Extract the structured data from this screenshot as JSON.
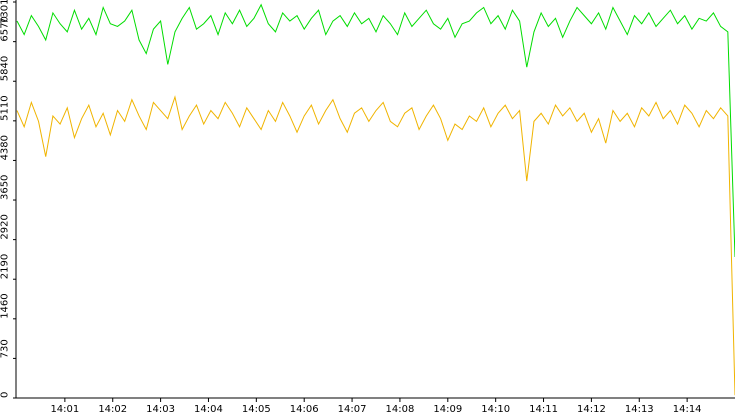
{
  "chart_data": {
    "type": "line",
    "x": [
      840,
      840.15,
      840.3,
      840.45,
      840.6,
      840.75,
      840.9,
      841.05,
      841.2,
      841.35,
      841.5,
      841.65,
      841.8,
      841.95,
      842.1,
      842.25,
      842.4,
      842.55,
      842.7,
      842.85,
      843,
      843.15,
      843.3,
      843.45,
      843.6,
      843.75,
      843.9,
      844.05,
      844.2,
      844.35,
      844.5,
      844.65,
      844.8,
      844.95,
      845.1,
      845.25,
      845.4,
      845.55,
      845.7,
      845.85,
      846,
      846.15,
      846.3,
      846.45,
      846.6,
      846.75,
      846.9,
      847.05,
      847.2,
      847.35,
      847.5,
      847.65,
      847.8,
      847.95,
      848.1,
      848.25,
      848.4,
      848.55,
      848.7,
      848.85,
      849,
      849.15,
      849.3,
      849.45,
      849.6,
      849.75,
      849.9,
      850.05,
      850.2,
      850.35,
      850.5,
      850.65,
      850.8,
      850.95,
      851.1,
      851.25,
      851.4,
      851.55,
      851.7,
      851.85,
      852,
      852.15,
      852.3,
      852.45,
      852.6,
      852.75,
      852.9,
      853.05,
      853.2,
      853.35,
      853.5,
      853.65,
      853.8,
      853.95,
      854.1,
      854.25,
      854.4,
      854.55,
      854.7,
      854.85,
      855
    ],
    "series": [
      {
        "color": "#00dd00",
        "values": [
          6950,
          6700,
          7050,
          6850,
          6600,
          7100,
          6900,
          6750,
          7150,
          6800,
          7000,
          6700,
          7200,
          6900,
          6850,
          6950,
          7150,
          6600,
          6350,
          6800,
          6950,
          6150,
          6750,
          7000,
          7200,
          6800,
          6900,
          7050,
          6700,
          7100,
          6900,
          7150,
          6850,
          7000,
          7250,
          6900,
          6750,
          7100,
          6950,
          7050,
          6800,
          7000,
          7150,
          6700,
          6950,
          7050,
          6850,
          7100,
          6900,
          7000,
          6750,
          7050,
          6900,
          6700,
          7100,
          6850,
          7000,
          7150,
          6900,
          6800,
          7000,
          6650,
          6900,
          6950,
          7100,
          7200,
          6900,
          7050,
          6800,
          7150,
          6950,
          6100,
          6750,
          7100,
          6850,
          7000,
          6650,
          6950,
          7200,
          7050,
          6900,
          7100,
          6800,
          7200,
          6950,
          6700,
          7050,
          6900,
          7100,
          6850,
          7000,
          7150,
          6900,
          7050,
          6800,
          7000,
          6950,
          7100,
          6850,
          6750,
          2600
        ]
      },
      {
        "color": "#f0b400",
        "values": [
          5300,
          5000,
          5450,
          5100,
          4450,
          5200,
          5050,
          5350,
          4800,
          5150,
          5400,
          5000,
          5250,
          4850,
          5300,
          5100,
          5500,
          5200,
          4950,
          5450,
          5300,
          5150,
          5550,
          4950,
          5200,
          5400,
          5050,
          5300,
          5150,
          5450,
          5250,
          5000,
          5350,
          5150,
          4950,
          5300,
          5100,
          5450,
          5200,
          4900,
          5200,
          5400,
          5050,
          5300,
          5500,
          5150,
          4900,
          5250,
          5350,
          5100,
          5300,
          5450,
          5100,
          5000,
          5250,
          5350,
          4950,
          5200,
          5400,
          5150,
          4750,
          5050,
          4950,
          5200,
          5100,
          5350,
          5000,
          5250,
          5400,
          5150,
          5300,
          4000,
          5100,
          5250,
          5050,
          5400,
          5200,
          5350,
          5100,
          5250,
          4900,
          5150,
          4700,
          5300,
          5100,
          5250,
          5000,
          5350,
          5200,
          5450,
          5150,
          5300,
          5050,
          5400,
          5250,
          5000,
          5300,
          5150,
          5350,
          5200,
          50
        ]
      }
    ],
    "xlim": [
      840,
      855
    ],
    "xticks": [
      {
        "value": 841,
        "label": "14:01"
      },
      {
        "value": 842,
        "label": "14:02"
      },
      {
        "value": 843,
        "label": "14:03"
      },
      {
        "value": 844,
        "label": "14:04"
      },
      {
        "value": 845,
        "label": "14:05"
      },
      {
        "value": 846,
        "label": "14:06"
      },
      {
        "value": 847,
        "label": "14:07"
      },
      {
        "value": 848,
        "label": "14:08"
      },
      {
        "value": 849,
        "label": "14:09"
      },
      {
        "value": 850,
        "label": "14:10"
      },
      {
        "value": 851,
        "label": "14:11"
      },
      {
        "value": 852,
        "label": "14:12"
      },
      {
        "value": 853,
        "label": "14:13"
      },
      {
        "value": 854,
        "label": "14:14"
      }
    ],
    "ylim": [
      0,
      7301
    ],
    "yticks": [
      0,
      730,
      1460,
      2190,
      2920,
      3650,
      4380,
      5110,
      5840,
      6570,
      7301
    ]
  }
}
